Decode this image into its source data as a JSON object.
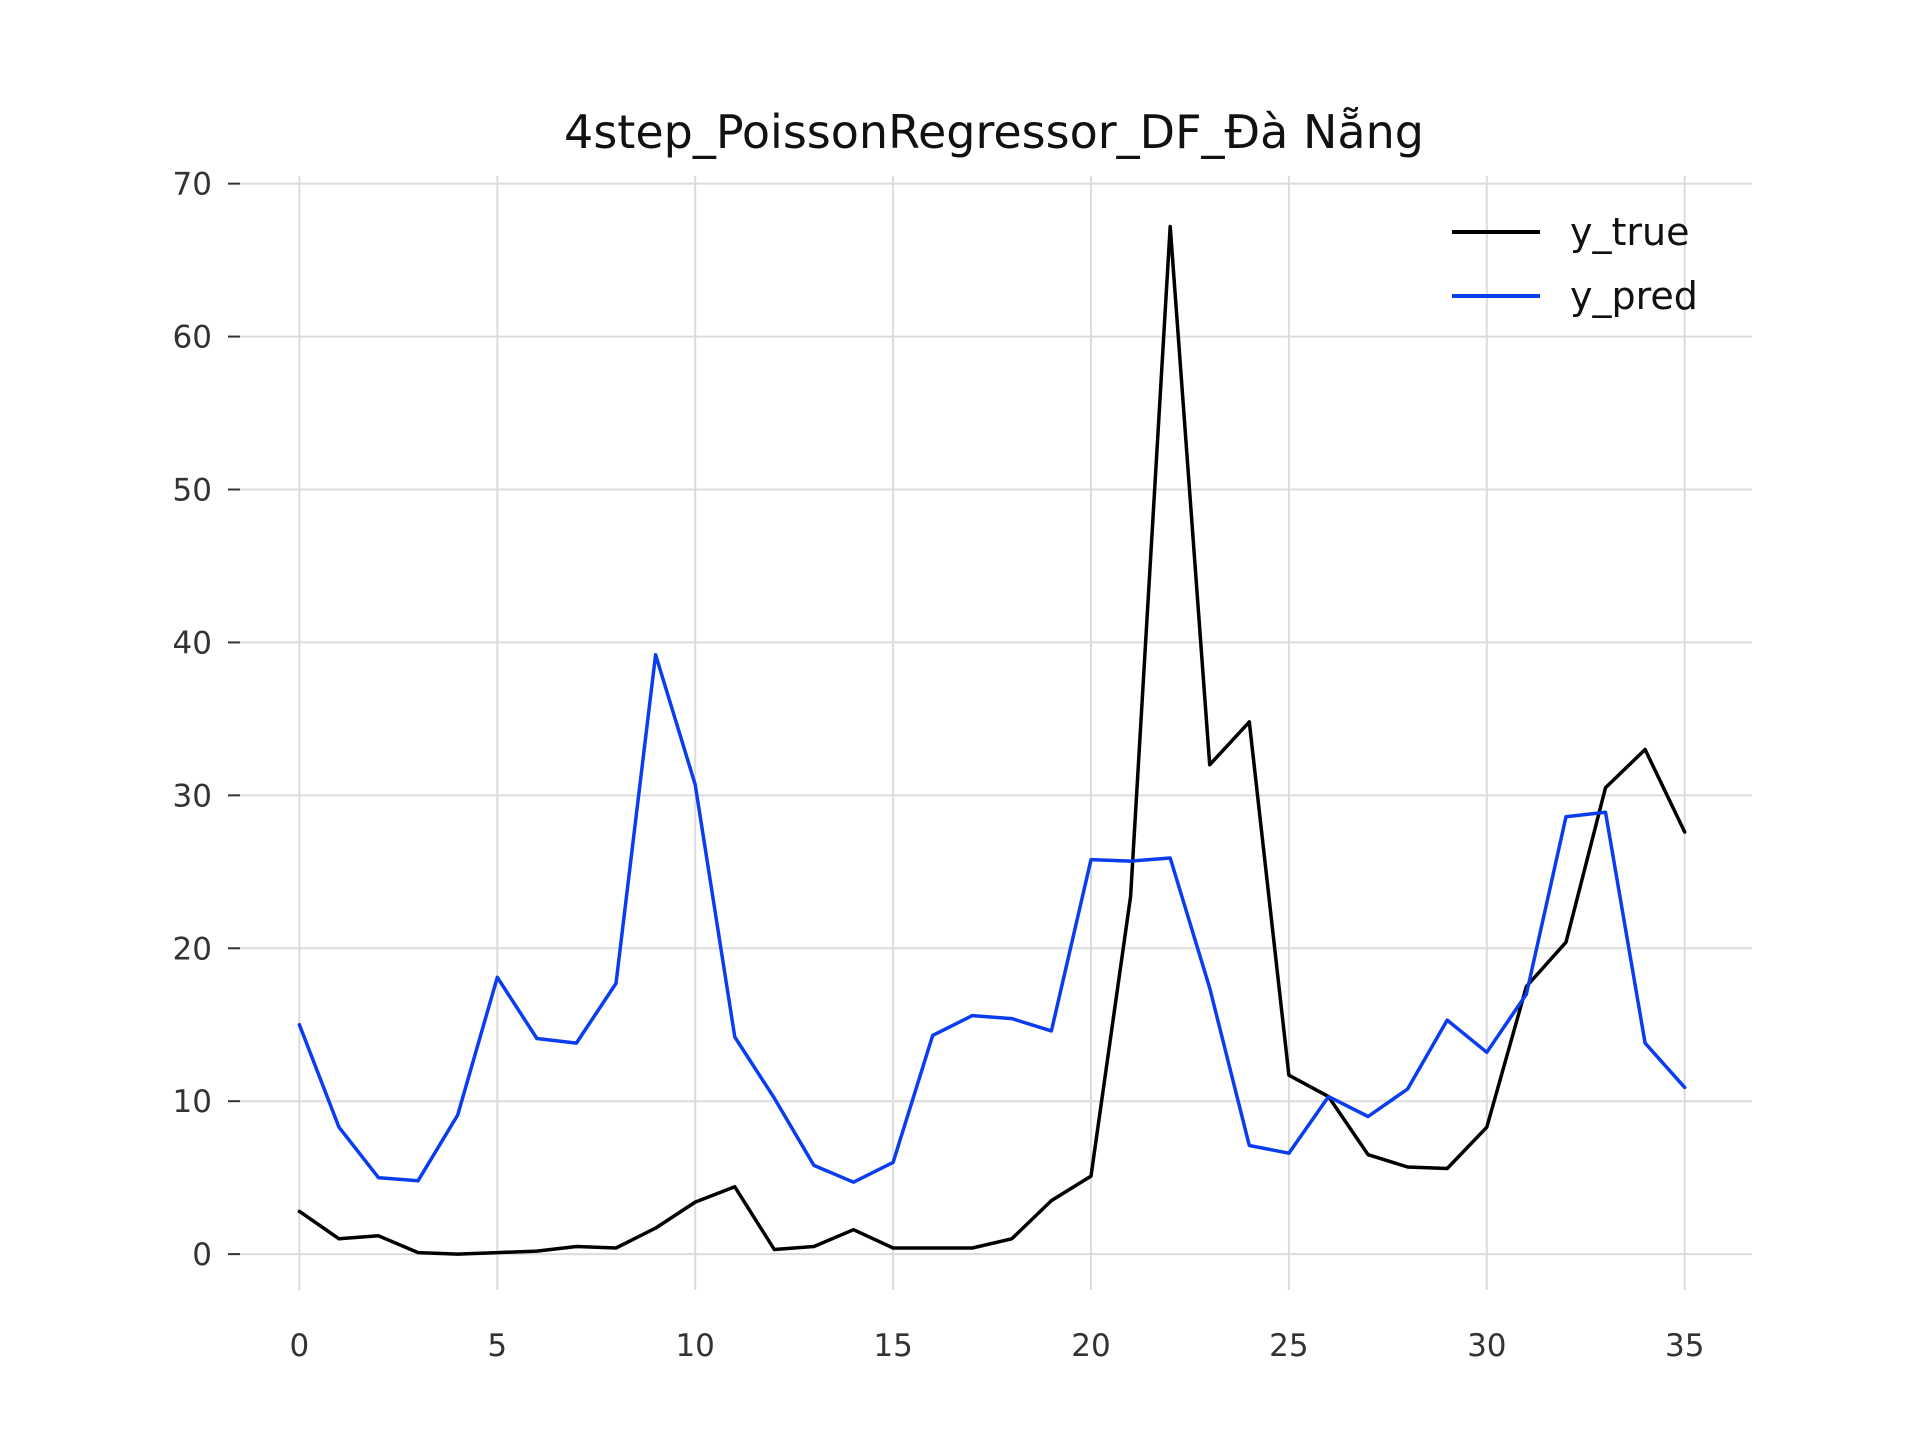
{
  "chart_data": {
    "type": "line",
    "title": "4step_PoissonRegressor_DF_Đà Nẵng",
    "xlabel": "",
    "ylabel": "",
    "xlim": [
      -1.5,
      36.7
    ],
    "ylim": [
      -3,
      70.5
    ],
    "x_ticks": [
      0,
      5,
      10,
      15,
      20,
      25,
      30,
      35
    ],
    "y_ticks": [
      0,
      10,
      20,
      30,
      40,
      50,
      60,
      70
    ],
    "grid": true,
    "legend_position": "top-right",
    "x": [
      0,
      1,
      2,
      3,
      4,
      5,
      6,
      7,
      8,
      9,
      10,
      11,
      12,
      13,
      14,
      15,
      16,
      17,
      18,
      19,
      20,
      21,
      22,
      23,
      24,
      25,
      26,
      27,
      28,
      29,
      30,
      31,
      32,
      33,
      34,
      35
    ],
    "series": [
      {
        "name": "y_true",
        "color": "#000000",
        "values": [
          2.8,
          1.0,
          1.2,
          0.1,
          0.0,
          0.1,
          0.2,
          0.5,
          0.4,
          1.7,
          3.4,
          4.4,
          0.3,
          0.5,
          1.6,
          0.4,
          0.4,
          0.4,
          1.0,
          3.5,
          5.1,
          23.4,
          67.2,
          32.0,
          34.8,
          11.7,
          10.3,
          6.5,
          5.7,
          5.6,
          8.3,
          17.5,
          20.4,
          30.5,
          33.0,
          27.6
        ]
      },
      {
        "name": "y_pred",
        "color": "#0a3cf0",
        "values": [
          15.0,
          8.3,
          5.0,
          4.8,
          9.1,
          18.1,
          14.1,
          13.8,
          17.7,
          39.2,
          30.7,
          14.2,
          10.2,
          5.8,
          4.7,
          6.0,
          14.3,
          15.6,
          15.4,
          14.6,
          25.8,
          25.7,
          25.9,
          17.4,
          7.1,
          6.6,
          10.3,
          9.0,
          10.8,
          15.3,
          13.2,
          17.0,
          28.6,
          28.9,
          13.8,
          10.9
        ]
      }
    ]
  }
}
